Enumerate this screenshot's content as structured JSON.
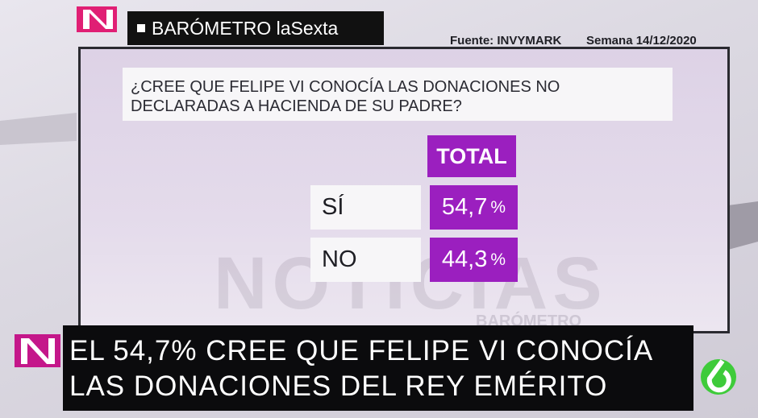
{
  "header": {
    "brand": "BARÓMETRO laSexta",
    "source": "Fuente: INVYMARK",
    "week": "Semana 14/12/2020"
  },
  "question": "¿CREE QUE FELIPE VI CONOCÍA LAS DONACIONES NO DECLARADAS A HACIENDA DE SU PADRE?",
  "table": {
    "column": "TOTAL",
    "rows": [
      {
        "label": "SÍ",
        "value": "54,7",
        "unit": "%"
      },
      {
        "label": "NO",
        "value": "44,3",
        "unit": "%"
      }
    ]
  },
  "watermark": {
    "main": "NOTICIAS",
    "sub": "BARÓMETRO"
  },
  "headline": {
    "line1": "EL 54,7% CREE QUE FELIPE VI CONOCÍA",
    "line2": "LAS DONACIONES DEL REY EMÉRITO"
  }
}
